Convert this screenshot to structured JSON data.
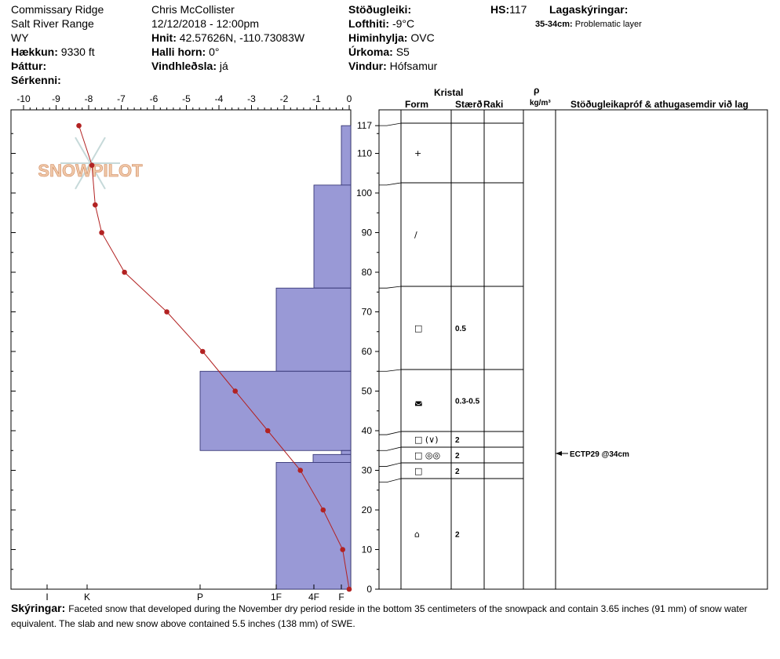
{
  "header": {
    "location": "Commissary Ridge",
    "range": "Salt River Range",
    "state": "WY",
    "elevation_label": "Hækkun:",
    "elevation_value": "9330 ft",
    "aspect_label": "Þáttur:",
    "features_label": "Sérkenni:",
    "observer": "Chris McCollister",
    "datetime": "12/12/2018 - 12:00pm",
    "coords_label": "Hnit:",
    "coords_value": "42.57626N, -110.73083W",
    "slope_label": "Halli horn:",
    "slope_value": "0°",
    "wind_loading_label": "Vindhleðsla:",
    "wind_loading_value": "já",
    "stability_label": "Stöðugleiki:",
    "air_temp_label": "Lofthiti:",
    "air_temp_value": "-9°C",
    "sky_label": "Himinhylja:",
    "sky_value": "OVC",
    "precip_label": "Úrkoma:",
    "precip_value": "S5",
    "wind_label": "Vindur:",
    "wind_value": "Hófsamur",
    "hs_label": "HS:",
    "hs_value": "117",
    "layers_label": "Lagaskýringar:",
    "layer_note_depth": "35-34cm:",
    "layer_note_text": "Problematic layer"
  },
  "table_header": {
    "crystal": "Kristal",
    "form": "Form",
    "size": "Stærð",
    "moisture": "Raki",
    "density_symbol": "ρ",
    "density_unit": "kg/m³",
    "tests": "Stöðugleikapróf & athugasemdir við lag"
  },
  "logo_text": "SNOWPILOT",
  "notes_label": "Skýringar:",
  "notes_text": "Faceted snow that developed during the November dry period reside in the bottom 35 centimeters of the snowpack and contain 3.65 inches (91 mm) of snow water equivalent. The slab and new snow above contained 5.5 inches (138 mm) of SWE.",
  "colors": {
    "hardness_fill": "#9999d6",
    "temp_line": "#b22222"
  },
  "chart_data": {
    "type": "line",
    "temp_axis_ticks": [
      "-10",
      "-9",
      "-8",
      "-7",
      "-6",
      "-5",
      "-4",
      "-3",
      "-2",
      "-1",
      "0"
    ],
    "temp_range": [
      -10,
      0
    ],
    "depth_range": [
      0,
      120
    ],
    "depth_ticks": [
      0,
      10,
      20,
      30,
      40,
      50,
      60,
      70,
      80,
      90,
      100,
      110,
      117
    ],
    "hardness_ticks": [
      "I",
      "K",
      "P",
      "1F",
      "4F",
      "F"
    ],
    "temperature_profile": [
      {
        "depth": 117,
        "temp": -8.3
      },
      {
        "depth": 107,
        "temp": -7.9
      },
      {
        "depth": 97,
        "temp": -7.8
      },
      {
        "depth": 90,
        "temp": -7.6
      },
      {
        "depth": 80,
        "temp": -6.9
      },
      {
        "depth": 70,
        "temp": -5.6
      },
      {
        "depth": 60,
        "temp": -4.5
      },
      {
        "depth": 50,
        "temp": -3.5
      },
      {
        "depth": 40,
        "temp": -2.5
      },
      {
        "depth": 30,
        "temp": -1.5
      },
      {
        "depth": 20,
        "temp": -0.8
      },
      {
        "depth": 10,
        "temp": -0.2
      },
      {
        "depth": 0,
        "temp": 0
      }
    ],
    "hardness_layers": [
      {
        "top": 117,
        "bottom": 102,
        "hardness": "F"
      },
      {
        "top": 102,
        "bottom": 76,
        "hardness": "4F"
      },
      {
        "top": 76,
        "bottom": 55,
        "hardness": "1F"
      },
      {
        "top": 55,
        "bottom": 35,
        "hardness": "P"
      },
      {
        "top": 35,
        "bottom": 34,
        "hardness": "F"
      },
      {
        "top": 34,
        "bottom": 32,
        "hardness": "4F-F"
      },
      {
        "top": 32,
        "bottom": 0,
        "hardness": "1F"
      }
    ],
    "layers": [
      {
        "top": 117,
        "bottom": 102,
        "form": "+",
        "size": ""
      },
      {
        "top": 102,
        "bottom": 76,
        "form": "/",
        "size": ""
      },
      {
        "top": 76,
        "bottom": 55,
        "form": "□",
        "size": "0.5"
      },
      {
        "top": 55,
        "bottom": 39,
        "form": "◛",
        "size": "0.3-0.5"
      },
      {
        "top": 39,
        "bottom": 35,
        "form": "□ (∨)",
        "size": "2"
      },
      {
        "top": 35,
        "bottom": 31,
        "form": "□ ◎◎",
        "size": "2"
      },
      {
        "top": 31,
        "bottom": 27,
        "form": "□",
        "size": "2"
      },
      {
        "top": 27,
        "bottom": 0,
        "form": "⌂",
        "size": "2"
      }
    ],
    "test_result": {
      "depth": 34,
      "label": "ECTP29 @34cm"
    }
  }
}
